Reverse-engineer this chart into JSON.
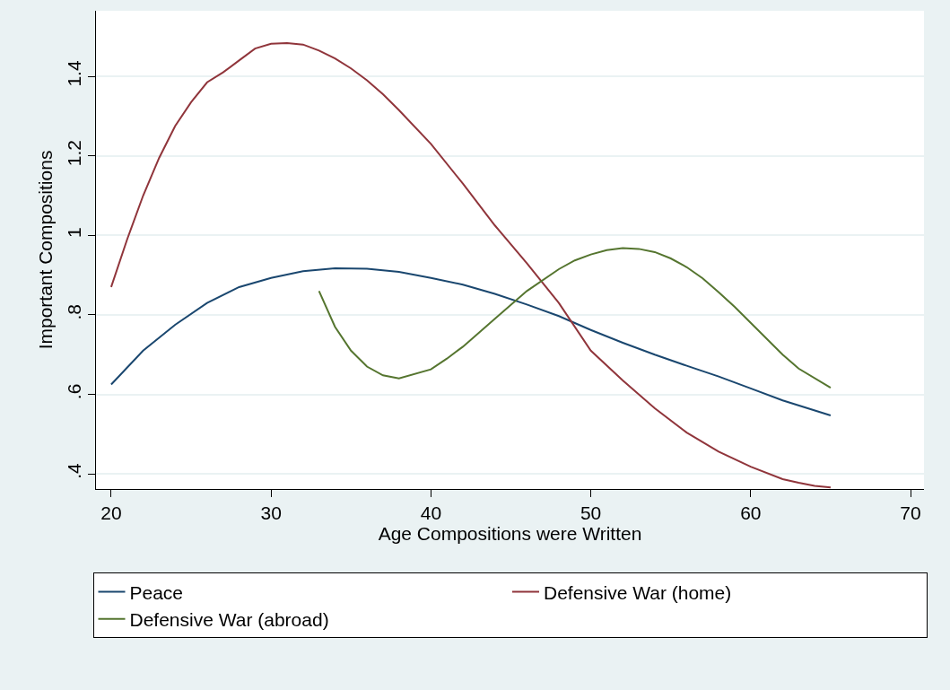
{
  "chart_data": {
    "type": "line",
    "xlabel": "Age Compositions were Written",
    "ylabel": "Important Compositions",
    "xlim": [
      19.05,
      70.84
    ],
    "ylim": [
      0.362,
      1.565
    ],
    "xticks": [
      20,
      30,
      40,
      50,
      60,
      70
    ],
    "yticks": [
      {
        "value": 0.4,
        "label": ".4"
      },
      {
        "value": 0.6,
        "label": ".6"
      },
      {
        "value": 0.8,
        "label": ".8"
      },
      {
        "value": 1,
        "label": "1"
      },
      {
        "value": 1.2,
        "label": "1.2"
      },
      {
        "value": 1.4,
        "label": "1.4"
      }
    ],
    "grid": "y",
    "legend": "bottom",
    "marker": "none",
    "line_style": "solid",
    "series": [
      {
        "name": "Peace",
        "color": "#1a476f",
        "x": [
          20,
          22,
          24,
          26,
          28,
          30,
          32,
          34,
          36,
          38,
          40,
          42,
          44,
          46,
          48,
          50,
          52,
          54,
          56,
          58,
          60,
          62,
          65
        ],
        "values": [
          0.625,
          0.71,
          0.775,
          0.83,
          0.87,
          0.893,
          0.91,
          0.917,
          0.916,
          0.908,
          0.893,
          0.876,
          0.853,
          0.826,
          0.797,
          0.762,
          0.73,
          0.7,
          0.672,
          0.645,
          0.615,
          0.585,
          0.547
        ]
      },
      {
        "name": "Defensive War (home)",
        "color": "#90353b",
        "x": [
          20,
          21,
          22,
          23,
          24,
          25,
          26,
          27,
          28,
          29,
          30,
          31,
          32,
          33,
          34,
          35,
          36,
          37,
          38,
          40,
          42,
          44,
          46,
          48,
          50,
          52,
          54,
          56,
          58,
          60,
          62,
          63,
          64,
          65
        ],
        "values": [
          0.87,
          0.99,
          1.1,
          1.195,
          1.275,
          1.335,
          1.385,
          1.41,
          1.44,
          1.47,
          1.482,
          1.484,
          1.48,
          1.465,
          1.445,
          1.42,
          1.39,
          1.355,
          1.315,
          1.23,
          1.13,
          1.025,
          0.93,
          0.83,
          0.71,
          0.635,
          0.565,
          0.504,
          0.456,
          0.418,
          0.387,
          0.378,
          0.37,
          0.366
        ]
      },
      {
        "name": "Defensive War (abroad)",
        "color": "#55752f",
        "x": [
          33,
          34,
          35,
          36,
          37,
          38,
          40,
          41,
          42,
          44,
          46,
          48,
          49,
          50,
          51,
          52,
          53,
          54,
          55,
          56,
          57,
          58,
          59,
          60,
          62,
          63,
          65
        ],
        "values": [
          0.86,
          0.77,
          0.71,
          0.67,
          0.648,
          0.64,
          0.663,
          0.69,
          0.72,
          0.79,
          0.86,
          0.915,
          0.937,
          0.952,
          0.963,
          0.968,
          0.966,
          0.958,
          0.942,
          0.92,
          0.892,
          0.857,
          0.82,
          0.78,
          0.7,
          0.665,
          0.617
        ]
      }
    ]
  }
}
